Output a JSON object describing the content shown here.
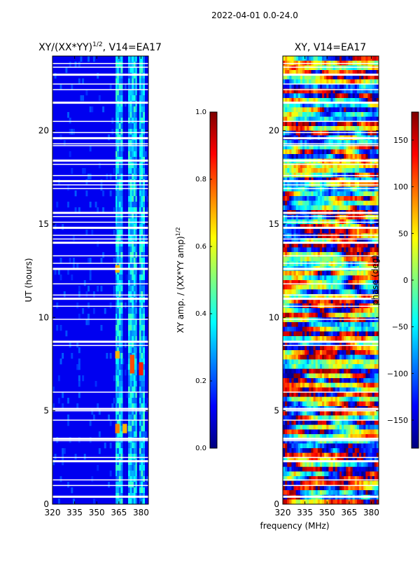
{
  "suptitle": "2022-04-01 0.0-24.0",
  "chart_data": [
    {
      "type": "heatmap",
      "title_main": "XY/(XX*YY)",
      "title_sup": "1/2",
      "title_rest": ", V14=EA17",
      "x": [
        320,
        385
      ],
      "xticks": [
        320,
        335,
        350,
        365,
        380
      ],
      "ylabel": "UT (hours)",
      "ylim": [
        0,
        24
      ],
      "yticks": [
        0,
        5,
        10,
        15,
        20
      ],
      "colorbar": {
        "label_main": "XY amp. / (XX*YY amp)",
        "label_sup": "1/2",
        "range": [
          0.0,
          1.0
        ],
        "ticks": [
          "0.0",
          "0.2",
          "0.4",
          "0.6",
          "0.8",
          "1.0"
        ],
        "cmap": "jet"
      },
      "bands_mhz": [
        [
          363,
          368
        ],
        [
          371,
          377
        ],
        [
          379,
          382
        ]
      ],
      "hot_spots": [
        {
          "mhz": 364,
          "ut": [
            3.8,
            4.3
          ],
          "value": 0.75
        },
        {
          "mhz": 369,
          "ut": [
            3.8,
            4.3
          ],
          "value": 0.7
        },
        {
          "mhz": 374,
          "ut": [
            7.0,
            8.0
          ],
          "value": 0.8
        },
        {
          "mhz": 380,
          "ut": [
            6.9,
            7.6
          ],
          "value": 0.85
        },
        {
          "mhz": 364,
          "ut": [
            12.4,
            12.8
          ],
          "value": 0.7
        },
        {
          "mhz": 364,
          "ut": [
            7.8,
            8.2
          ],
          "value": 0.7
        }
      ]
    },
    {
      "type": "heatmap",
      "title": "XY, V14=EA17",
      "x": [
        320,
        385
      ],
      "xticks": [
        320,
        335,
        350,
        365,
        380
      ],
      "ylim": [
        0,
        24
      ],
      "yticks": [
        0,
        5,
        10,
        15,
        20
      ],
      "colorbar": {
        "label": "phase (deg)",
        "range": [
          -180,
          180
        ],
        "ticks": [
          "150",
          "100",
          "50",
          "0",
          "−50",
          "−100",
          "−150"
        ],
        "tick_values": [
          150,
          100,
          50,
          0,
          -50,
          -100,
          -150
        ],
        "cmap": "jet"
      }
    }
  ],
  "xlabel": "frequency (MHz)",
  "flag_gaps_ut": [
    0.4,
    1.0,
    1.3,
    2.3,
    2.5,
    3.4,
    3.5,
    4.5,
    5.0,
    5.1,
    6.0,
    8.5,
    8.7,
    9.9,
    10.6,
    11.0,
    11.2,
    11.8,
    12.6,
    12.9,
    13.3,
    14.0,
    14.2,
    14.4,
    14.8,
    15.1,
    15.4,
    15.6,
    16.9,
    17.1,
    17.3,
    17.6,
    18.2,
    18.4,
    19.2,
    19.3,
    19.6,
    19.9,
    20.5,
    21.5,
    22.2,
    22.5,
    23.0,
    23.4,
    23.6
  ]
}
